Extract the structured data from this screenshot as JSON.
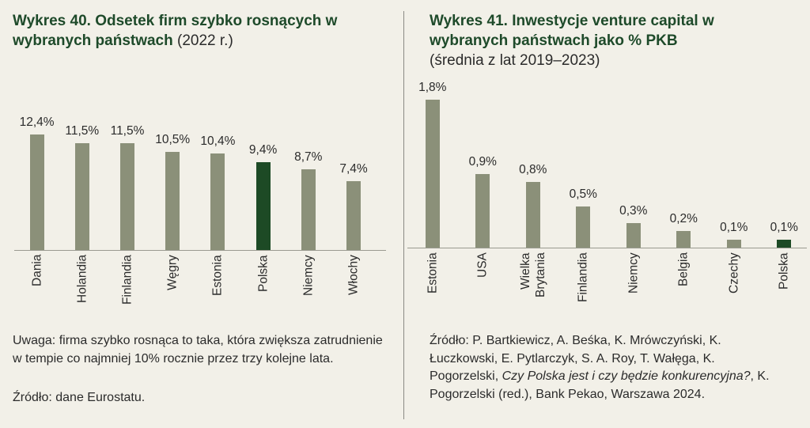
{
  "chart_data": [
    {
      "type": "bar",
      "title": "Wykres 40. Odsetek firm szybko rosnących w wybranych państwach",
      "title_note": "(2022 r.)",
      "categories": [
        "Dania",
        "Holandia",
        "Finlandia",
        "Węgry",
        "Estonia",
        "Polska",
        "Niemcy",
        "Włochy"
      ],
      "values": [
        12.4,
        11.5,
        11.5,
        10.5,
        10.4,
        9.4,
        8.7,
        7.4
      ],
      "value_labels": [
        "12,4%",
        "11,5%",
        "11,5%",
        "10,5%",
        "10,4%",
        "9,4%",
        "8,7%",
        "7,4%"
      ],
      "colors": [
        "#8b9079",
        "#8b9079",
        "#8b9079",
        "#8b9079",
        "#8b9079",
        "#1d4a25",
        "#8b9079",
        "#8b9079"
      ],
      "note": "Uwaga: firma szybko rosnąca to taka, która zwiększa zatrudnienie w tempie co najmniej 10% rocznie przez trzy kolejne lata.",
      "source": [
        "Źródło: dane Eurostatu."
      ]
    },
    {
      "type": "bar",
      "title": "Wykres 41. Inwestycje venture capital w wybranych państwach jako % PKB",
      "subtitle": "(średnia z lat 2019–2023)",
      "categories": [
        "Estonia",
        "USA",
        "Wielka\nBrytania",
        "Finlandia",
        "Niemcy",
        "Belgia",
        "Czechy",
        "Polska"
      ],
      "values": [
        1.8,
        0.9,
        0.8,
        0.5,
        0.3,
        0.2,
        0.1,
        0.1
      ],
      "value_labels": [
        "1,8%",
        "0,9%",
        "0,8%",
        "0,5%",
        "0,3%",
        "0,2%",
        "0,1%",
        "0,1%"
      ],
      "colors": [
        "#8b9079",
        "#8b9079",
        "#8b9079",
        "#8b9079",
        "#8b9079",
        "#8b9079",
        "#8b9079",
        "#1d4a25"
      ],
      "source": [
        "Źródło: P. Bartkiewicz, A. Beśka, K. Mrówczyński, K. Łuczkowski, E. Pytlarczyk, S. A. Roy, T. Wałęga, K. Pogorzelski, ",
        "Czy Polska jest i czy będzie konkurencyjna?",
        ", K. Pogorzelski (red.), Bank Pekao, Warszawa 2024."
      ]
    }
  ]
}
